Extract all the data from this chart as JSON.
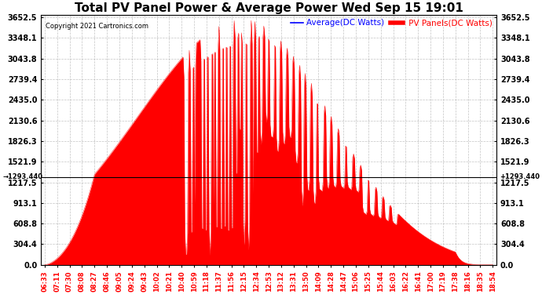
{
  "title": "Total PV Panel Power & Average Power Wed Sep 15 19:01",
  "copyright": "Copyright 2021 Cartronics.com",
  "legend_avg": "Average(DC Watts)",
  "legend_pv": " PV Panels(DC Watts)",
  "avg_value": 1293.44,
  "y_ticks": [
    0.0,
    304.4,
    608.8,
    913.1,
    1217.5,
    1521.9,
    1826.3,
    2130.6,
    2435.0,
    2739.4,
    3043.8,
    3348.1,
    3652.5
  ],
  "ylim": [
    0.0,
    3652.5
  ],
  "x_labels": [
    "06:33",
    "07:11",
    "07:30",
    "08:08",
    "08:27",
    "08:46",
    "09:05",
    "09:24",
    "09:43",
    "10:02",
    "10:21",
    "10:40",
    "10:59",
    "11:18",
    "11:37",
    "11:56",
    "12:15",
    "12:34",
    "12:53",
    "13:12",
    "13:31",
    "13:50",
    "14:09",
    "14:28",
    "14:47",
    "15:06",
    "15:25",
    "15:44",
    "16:03",
    "16:22",
    "16:41",
    "17:00",
    "17:19",
    "17:38",
    "18:16",
    "18:35",
    "18:54"
  ],
  "background_color": "#ffffff",
  "grid_color": "#aaaaaa",
  "fill_color": "#ff0000",
  "avg_line_color": "#0000ff",
  "title_fontsize": 11,
  "tick_fontsize": 7,
  "copyright_fontsize": 6,
  "legend_fontsize": 7.5,
  "avg_label_color": "#0000ff",
  "pv_label_color": "#ff0000"
}
